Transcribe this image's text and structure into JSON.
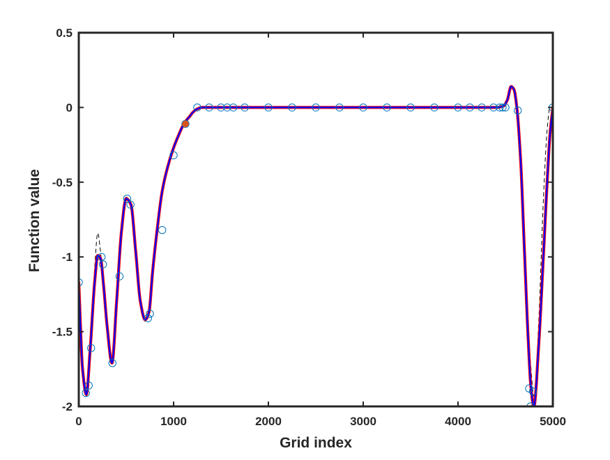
{
  "chart_data": {
    "type": "line",
    "xlabel": "Grid index",
    "ylabel": "Function value",
    "xlim": [
      0,
      5000
    ],
    "ylim": [
      -2,
      0.5
    ],
    "xticks": [
      0,
      1000,
      2000,
      3000,
      4000,
      5000
    ],
    "yticks": [
      -2,
      -1.5,
      -1,
      -0.5,
      0,
      0.5
    ],
    "xtick_labels": [
      "0",
      "1000",
      "2000",
      "3000",
      "4000",
      "5000"
    ],
    "ytick_labels": [
      "-2",
      "-1.5",
      "-1",
      "-0.5",
      "0",
      "0.5"
    ],
    "grid": false,
    "box": true,
    "series": [
      {
        "style": "reference-dashed",
        "color": "#000000",
        "x": [
          0,
          40,
          80,
          120,
          170,
          200,
          230,
          260,
          300,
          350,
          400,
          450,
          500,
          550,
          600,
          650,
          700,
          740,
          780,
          830,
          880,
          950,
          1000,
          1050,
          1100,
          1130,
          1170,
          1200,
          1250,
          1300,
          1500,
          2000,
          3000,
          4000,
          4400,
          4480,
          4520,
          4560,
          4590,
          4620,
          4660,
          4700,
          4740,
          4770,
          4800,
          4850,
          4900,
          4940,
          4970,
          5000
        ],
        "y": [
          -1.17,
          -1.75,
          -1.93,
          -1.6,
          -1.05,
          -0.84,
          -0.97,
          -1.18,
          -1.48,
          -1.72,
          -1.28,
          -0.82,
          -0.6,
          -0.65,
          -0.96,
          -1.3,
          -1.43,
          -1.37,
          -1.09,
          -0.8,
          -0.56,
          -0.37,
          -0.27,
          -0.19,
          -0.12,
          -0.09,
          -0.06,
          -0.035,
          -0.01,
          0,
          0,
          0,
          0,
          0,
          0,
          0.01,
          0.05,
          0.14,
          0.12,
          0.0,
          -0.35,
          -0.92,
          -1.45,
          -1.75,
          -1.93,
          -1.45,
          -0.62,
          -0.15,
          0.0,
          0.0
        ]
      },
      {
        "style": "approximation-red",
        "color": "#ff0000",
        "x": [
          0,
          40,
          80,
          120,
          170,
          200,
          230,
          260,
          300,
          350,
          400,
          450,
          500,
          550,
          600,
          650,
          700,
          740,
          780,
          830,
          880,
          950,
          1000,
          1050,
          1100,
          1130,
          1170,
          1200,
          1250,
          1300,
          1500,
          2000,
          3000,
          4000,
          4400,
          4480,
          4520,
          4560,
          4590,
          4620,
          4660,
          4700,
          4740,
          4770,
          4800,
          4850,
          4900,
          4940,
          4970,
          5000
        ],
        "y": [
          -1.17,
          -1.75,
          -1.92,
          -1.62,
          -1.15,
          -0.99,
          -1.01,
          -1.18,
          -1.47,
          -1.71,
          -1.29,
          -0.83,
          -0.61,
          -0.65,
          -0.96,
          -1.3,
          -1.42,
          -1.37,
          -1.09,
          -0.8,
          -0.56,
          -0.37,
          -0.27,
          -0.19,
          -0.12,
          -0.09,
          -0.06,
          -0.035,
          -0.01,
          0,
          0,
          0,
          0,
          0,
          0,
          0.01,
          0.05,
          0.14,
          0.12,
          0.0,
          -0.35,
          -0.95,
          -1.55,
          -1.88,
          -2.0,
          -1.6,
          -1.0,
          -0.5,
          -0.18,
          0.0
        ]
      },
      {
        "style": "approximation-blue",
        "color": "#0000ff",
        "x": [
          0,
          40,
          80,
          120,
          170,
          200,
          230,
          260,
          300,
          350,
          400,
          450,
          500,
          550,
          600,
          650,
          700,
          740,
          780,
          830,
          880,
          950,
          1000,
          1050,
          1100,
          1130,
          1170,
          1200,
          1250,
          1300,
          1500,
          2000,
          3000,
          4000,
          4400,
          4480,
          4520,
          4560,
          4590,
          4620,
          4660,
          4700,
          4740,
          4770,
          4800,
          4850,
          4900,
          4940,
          4970,
          5000
        ],
        "y": [
          -1.17,
          -1.75,
          -1.92,
          -1.62,
          -1.15,
          -0.99,
          -1.01,
          -1.18,
          -1.47,
          -1.71,
          -1.29,
          -0.83,
          -0.61,
          -0.65,
          -0.96,
          -1.3,
          -1.42,
          -1.37,
          -1.09,
          -0.8,
          -0.56,
          -0.37,
          -0.27,
          -0.19,
          -0.12,
          -0.09,
          -0.06,
          -0.035,
          -0.01,
          0,
          0,
          0,
          0,
          0,
          0,
          0.01,
          0.05,
          0.14,
          0.12,
          0.0,
          -0.35,
          -0.95,
          -1.55,
          -1.88,
          -2.0,
          -1.6,
          -1.0,
          -0.5,
          -0.18,
          0.0
        ]
      },
      {
        "style": "markers-circle",
        "color": "#0072bd",
        "x": [
          0,
          75,
          105,
          130,
          240,
          255,
          355,
          430,
          510,
          545,
          730,
          750,
          880,
          1000,
          1125,
          1250,
          1375,
          1500,
          1565,
          1630,
          1750,
          2000,
          2250,
          2500,
          2750,
          3000,
          3250,
          3500,
          3750,
          4000,
          4125,
          4250,
          4375,
          4440,
          4470,
          4500,
          4630,
          4750,
          4765,
          4790,
          5000
        ],
        "y": [
          -1.17,
          -1.91,
          -1.86,
          -1.61,
          -1.0,
          -1.05,
          -1.71,
          -1.13,
          -0.61,
          -0.65,
          -1.41,
          -1.38,
          -0.82,
          -0.32,
          -0.11,
          0.0,
          0.0,
          0.0,
          0.0,
          0.0,
          0.0,
          0.0,
          0.0,
          0.0,
          0.0,
          0.0,
          0.0,
          0.0,
          0.0,
          0.0,
          0.0,
          0.0,
          0.0,
          0.0,
          0.0,
          0.0,
          -0.02,
          -1.88,
          -2.0,
          -1.9,
          0.0
        ]
      },
      {
        "style": "highlight-point",
        "color": "#d95319",
        "x": [
          1125
        ],
        "y": [
          -0.11
        ]
      }
    ]
  }
}
